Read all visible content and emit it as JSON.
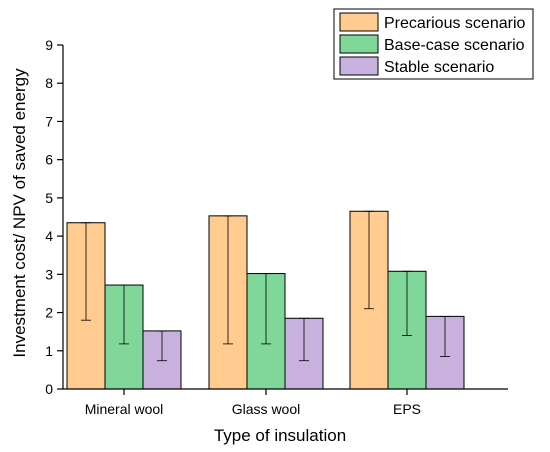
{
  "chart_data": {
    "type": "bar",
    "xlabel": "Type of insulation",
    "ylabel": "Investment cost/ NPV of saved energy",
    "ylim": [
      0,
      9
    ],
    "yticks": [
      0,
      1,
      2,
      3,
      4,
      5,
      6,
      7,
      8,
      9
    ],
    "grid": false,
    "legend_position": "top-right",
    "categories": [
      "Mineral wool",
      "Glass wool",
      "EPS"
    ],
    "series": [
      {
        "name": "Precarious scenario",
        "color": "#FFCB8E",
        "values": [
          4.35,
          4.53,
          4.65
        ],
        "error_low": [
          1.8,
          1.18,
          2.1
        ],
        "error_high": [
          4.35,
          4.53,
          4.65
        ]
      },
      {
        "name": "Base-case scenario",
        "color": "#7FD89A",
        "values": [
          2.72,
          3.02,
          3.08
        ],
        "error_low": [
          1.18,
          1.18,
          1.4
        ],
        "error_high": [
          2.72,
          3.02,
          3.08
        ]
      },
      {
        "name": "Stable scenario",
        "color": "#C9B1DF",
        "values": [
          1.52,
          1.85,
          1.9
        ],
        "error_low": [
          0.74,
          0.74,
          0.85
        ],
        "error_high": [
          1.52,
          1.85,
          1.9
        ]
      }
    ]
  }
}
